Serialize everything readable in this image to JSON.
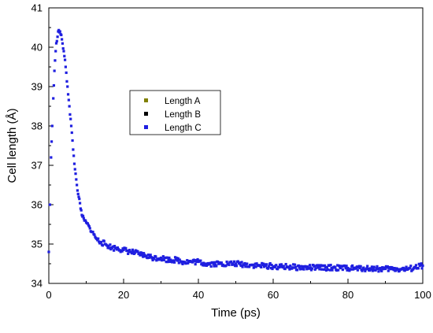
{
  "chart_data": {
    "type": "scatter",
    "title": "",
    "xlabel": "Time (ps)",
    "ylabel": "Cell length (Å)",
    "xlim": [
      0,
      100
    ],
    "ylim": [
      34,
      41
    ],
    "x_ticks": [
      "0",
      "20",
      "40",
      "60",
      "80",
      "100"
    ],
    "y_ticks": [
      "34",
      "35",
      "36",
      "37",
      "38",
      "39",
      "40",
      "41"
    ],
    "grid": false,
    "legend_position": "upper-center-left",
    "series": [
      {
        "name": "Length A",
        "color": "#808000",
        "x": [],
        "y": []
      },
      {
        "name": "Length B",
        "color": "#000000",
        "x": [],
        "y": []
      },
      {
        "name": "Length C",
        "color": "#1f1fe0",
        "x": [
          0,
          0.3,
          0.6,
          0.9,
          1.2,
          1.5,
          2.0,
          2.5,
          3.0,
          3.5,
          4.0,
          4.5,
          5.0,
          5.5,
          6.0,
          6.5,
          7.0,
          7.5,
          8.0,
          8.5,
          9.0,
          9.5,
          10,
          11,
          12,
          13,
          14,
          15,
          16,
          17,
          18,
          20,
          22,
          24,
          26,
          28,
          30,
          32,
          34,
          36,
          38,
          40,
          42,
          44,
          46,
          48,
          50,
          52,
          54,
          56,
          58,
          60,
          62,
          64,
          66,
          68,
          70,
          72,
          74,
          76,
          78,
          80,
          82,
          84,
          86,
          88,
          90,
          92,
          94,
          96,
          98,
          100
        ],
        "y": [
          34.8,
          36.0,
          37.2,
          38.0,
          38.7,
          39.4,
          40.1,
          40.4,
          40.4,
          40.2,
          39.9,
          39.5,
          39.0,
          38.5,
          38.0,
          37.4,
          36.9,
          36.5,
          36.2,
          35.9,
          35.7,
          35.6,
          35.55,
          35.4,
          35.25,
          35.1,
          35.05,
          35.0,
          34.95,
          34.9,
          34.9,
          34.85,
          34.8,
          34.75,
          34.7,
          34.65,
          34.65,
          34.6,
          34.6,
          34.55,
          34.55,
          34.55,
          34.5,
          34.5,
          34.5,
          34.5,
          34.5,
          34.48,
          34.47,
          34.45,
          34.45,
          34.43,
          34.42,
          34.42,
          34.41,
          34.4,
          34.4,
          34.4,
          34.4,
          34.4,
          34.39,
          34.39,
          34.38,
          34.38,
          34.38,
          34.37,
          34.37,
          34.37,
          34.36,
          34.36,
          34.4,
          34.45
        ]
      }
    ]
  }
}
